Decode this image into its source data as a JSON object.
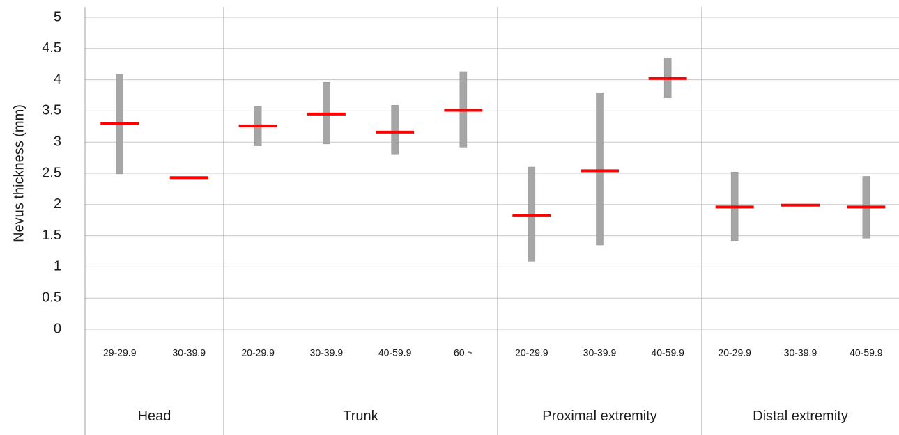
{
  "chart_data": {
    "type": "range",
    "ylabel": "Nevus thickness (mm)",
    "ylim": [
      0,
      5
    ],
    "yticks": [
      "0",
      "0.5",
      "1",
      "1.5",
      "2",
      "2.5",
      "3",
      "3.5",
      "4",
      "4.5",
      "5"
    ],
    "grid": true,
    "colors": {
      "range_bar": "#a6a6a6",
      "median": "#ff0000",
      "grid": "#c8c8c8",
      "axis": "#a0a0a0"
    },
    "groups": [
      {
        "name": "Head",
        "items": [
          {
            "label": "29-29.9",
            "min": 2.49,
            "max": 4.09,
            "median": 3.3
          },
          {
            "label": "30-39.9",
            "min": null,
            "max": null,
            "median": 2.43
          }
        ]
      },
      {
        "name": "Trunk",
        "items": [
          {
            "label": "20-29.9",
            "min": 2.94,
            "max": 3.57,
            "median": 3.26
          },
          {
            "label": "30-39.9",
            "min": 2.97,
            "max": 3.96,
            "median": 3.45
          },
          {
            "label": "40-59.9",
            "min": 2.81,
            "max": 3.59,
            "median": 3.16
          },
          {
            "label": "60 ~",
            "min": 2.92,
            "max": 4.13,
            "median": 3.51
          }
        ]
      },
      {
        "name": "Proximal extremity",
        "items": [
          {
            "label": "20-29.9",
            "min": 1.09,
            "max": 2.6,
            "median": 1.82
          },
          {
            "label": "30-39.9",
            "min": 1.35,
            "max": 3.79,
            "median": 2.54
          },
          {
            "label": "40-59.9",
            "min": 3.71,
            "max": 4.35,
            "median": 4.02
          }
        ]
      },
      {
        "name": "Distal extremity",
        "items": [
          {
            "label": "20-29.9",
            "min": 1.42,
            "max": 2.52,
            "median": 1.96
          },
          {
            "label": "30-39.9",
            "min": null,
            "max": null,
            "median": 1.99
          },
          {
            "label": "40-59.9",
            "min": 1.46,
            "max": 2.45,
            "median": 1.96
          }
        ]
      }
    ]
  }
}
